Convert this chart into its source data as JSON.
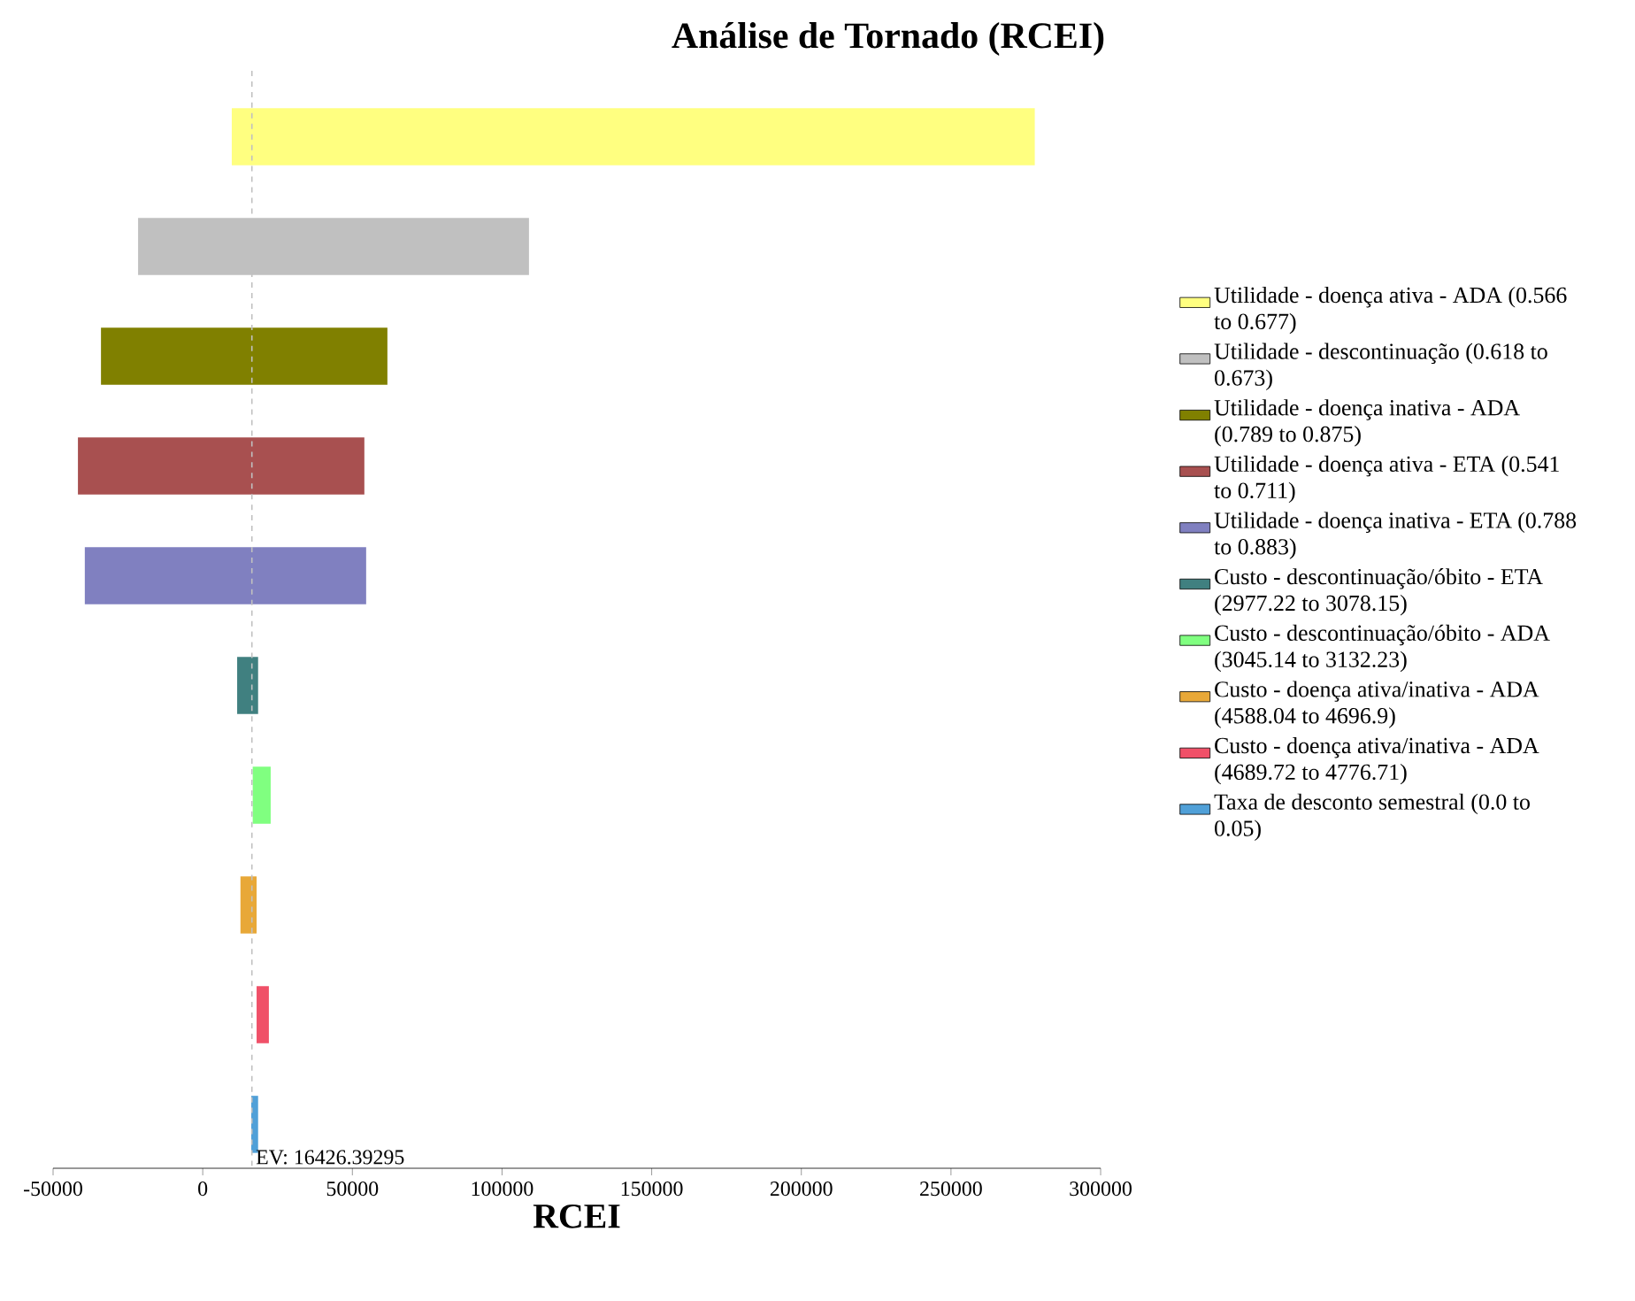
{
  "chart_data": {
    "type": "bar",
    "orientation": "horizontal",
    "title": "Análise de Tornado (RCEI)",
    "xlabel": "RCEI",
    "categories": [
      null,
      null,
      null,
      null,
      null,
      null,
      null,
      null,
      null,
      null
    ],
    "series": [
      {
        "name": "Utilidade - doença ativa - ADA (0.566 to 0.677)",
        "color": "#ffff80",
        "base": [
          9700,
          null,
          null,
          null,
          null,
          null,
          null,
          null,
          null,
          null
        ],
        "values": [
          268300,
          null,
          null,
          null,
          null,
          null,
          null,
          null,
          null,
          null
        ]
      },
      {
        "name": "Utilidade - descontinuação (0.618 to 0.673)",
        "color": "#c0c0c0",
        "base": [
          null,
          -21600,
          null,
          null,
          null,
          null,
          null,
          null,
          null,
          null
        ],
        "values": [
          null,
          130600,
          null,
          null,
          null,
          null,
          null,
          null,
          null,
          null
        ]
      },
      {
        "name": "Utilidade - doença inativa - ADA (0.789 to 0.875)",
        "color": "#808000",
        "base": [
          null,
          null,
          -34000,
          null,
          null,
          null,
          null,
          null,
          null,
          null
        ],
        "values": [
          null,
          null,
          95700,
          null,
          null,
          null,
          null,
          null,
          null,
          null
        ]
      },
      {
        "name": "Utilidade - doença ativa - ETA (0.541 to 0.711)",
        "color": "#a85050",
        "base": [
          null,
          null,
          null,
          -41700,
          null,
          null,
          null,
          null,
          null,
          null
        ],
        "values": [
          null,
          null,
          null,
          95700,
          null,
          null,
          null,
          null,
          null,
          null
        ]
      },
      {
        "name": "Utilidade - doença inativa - ETA (0.788 to 0.883)",
        "color": "#8080c0",
        "base": [
          null,
          null,
          null,
          null,
          -39400,
          null,
          null,
          null,
          null,
          null
        ],
        "values": [
          null,
          null,
          null,
          null,
          94000,
          null,
          null,
          null,
          null,
          null
        ]
      },
      {
        "name": "Custo - descontinuação/óbito - ETA (2977.22 to 3078.15)",
        "color": "#408080",
        "base": [
          null,
          null,
          null,
          null,
          null,
          11500,
          null,
          null,
          null,
          null
        ],
        "values": [
          null,
          null,
          null,
          null,
          null,
          7000,
          null,
          null,
          null,
          null
        ]
      },
      {
        "name": "Custo - descontinuação/óbito - ADA (3045.14 to 3132.23)",
        "color": "#80ff80",
        "base": [
          null,
          null,
          null,
          null,
          null,
          null,
          16700,
          null,
          null,
          null
        ],
        "values": [
          null,
          null,
          null,
          null,
          null,
          null,
          6000,
          null,
          null,
          null
        ]
      },
      {
        "name": "Custo - doença ativa/inativa - ADA (4588.04 to 4696.9)",
        "color": "#e8a838",
        "base": [
          null,
          null,
          null,
          null,
          null,
          null,
          null,
          12600,
          null,
          null
        ],
        "values": [
          null,
          null,
          null,
          null,
          null,
          null,
          null,
          5400,
          null,
          null
        ]
      },
      {
        "name": "Custo - doença ativa/inativa - ADA (4689.72 to 4776.71)",
        "color": "#f05068",
        "base": [
          null,
          null,
          null,
          null,
          null,
          null,
          null,
          null,
          18000,
          null
        ],
        "values": [
          null,
          null,
          null,
          null,
          null,
          null,
          null,
          null,
          4100,
          null
        ]
      },
      {
        "name": "Taxa de desconto semestral (0.0 to 0.05)",
        "color": "#50a0d8",
        "base": [
          null,
          null,
          null,
          null,
          null,
          null,
          null,
          null,
          null,
          16200
        ],
        "values": [
          null,
          null,
          null,
          null,
          null,
          null,
          null,
          null,
          null,
          2300
        ]
      }
    ],
    "xlim": [
      -50000,
      300000
    ],
    "xticks": [
      -50000,
      0,
      50000,
      100000,
      150000,
      200000,
      250000,
      300000
    ],
    "ref_lines": [
      {
        "axis": "x",
        "value": 16426.39295,
        "label": "EV: 16426.39295",
        "color": "#c0c0c0",
        "line_style": "dashed"
      }
    ],
    "legend": "right",
    "grid": false
  }
}
